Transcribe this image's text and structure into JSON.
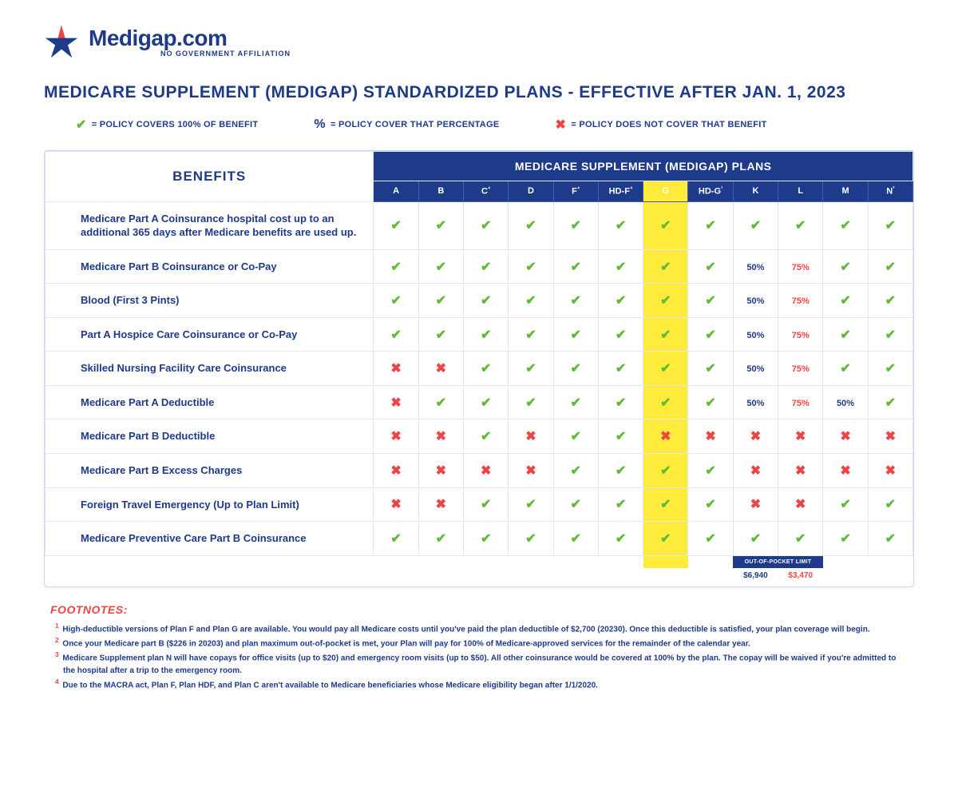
{
  "brand": {
    "name": "Medigap.com",
    "tagline": "NO GOVERNMENT AFFILIATION",
    "star_color": "#1e3a8a",
    "star_accent": "#ef4444"
  },
  "title": "MEDICARE SUPPLEMENT (MEDIGAP) STANDARDIZED PLANS - EFFECTIVE AFTER JAN. 1, 2023",
  "legend": {
    "covers": "= POLICY COVERS 100% OF BENEFIT",
    "percentage": "= POLICY COVER THAT PERCENTAGE",
    "not_cover": "= POLICY DOES NOT COVER THAT BENEFIT"
  },
  "table": {
    "benefits_label": "BENEFITS",
    "plans_label": "MEDICARE SUPPLEMENT (MEDIGAP) PLANS",
    "columns": [
      "A",
      "B",
      "C⁴",
      "D",
      "F⁴",
      "HD-F⁴",
      "G",
      "HD-G¹",
      "K",
      "L",
      "M",
      "N³"
    ],
    "highlight_index": 6,
    "rows": [
      {
        "label": "Medicare Part A Coinsurance hospital cost up to an additional 365 days after Medicare benefits are used up.",
        "vals": [
          "check",
          "check",
          "check",
          "check",
          "check",
          "check",
          "check",
          "check",
          "check",
          "check",
          "check",
          "check"
        ]
      },
      {
        "label": "Medicare Part B Coinsurance or Co-Pay",
        "vals": [
          "check",
          "check",
          "check",
          "check",
          "check",
          "check",
          "check",
          "check",
          "50%",
          "75%",
          "check",
          "check"
        ]
      },
      {
        "label": "Blood (First 3 Pints)",
        "vals": [
          "check",
          "check",
          "check",
          "check",
          "check",
          "check",
          "check",
          "check",
          "50%",
          "75%",
          "check",
          "check"
        ]
      },
      {
        "label": "Part A Hospice Care Coinsurance or Co-Pay",
        "vals": [
          "check",
          "check",
          "check",
          "check",
          "check",
          "check",
          "check",
          "check",
          "50%",
          "75%",
          "check",
          "check"
        ]
      },
      {
        "label": "Skilled Nursing Facility Care Coinsurance",
        "vals": [
          "x",
          "x",
          "check",
          "check",
          "check",
          "check",
          "check",
          "check",
          "50%",
          "75%",
          "check",
          "check"
        ]
      },
      {
        "label": "Medicare Part A Deductible",
        "vals": [
          "x",
          "check",
          "check",
          "check",
          "check",
          "check",
          "check",
          "check",
          "50%",
          "75%",
          "50%",
          "check"
        ]
      },
      {
        "label": "Medicare Part B Deductible",
        "vals": [
          "x",
          "x",
          "check",
          "x",
          "check",
          "check",
          "x",
          "x",
          "x",
          "x",
          "x",
          "x"
        ]
      },
      {
        "label": "Medicare Part B Excess Charges",
        "vals": [
          "x",
          "x",
          "x",
          "x",
          "check",
          "check",
          "check",
          "check",
          "x",
          "x",
          "x",
          "x"
        ]
      },
      {
        "label": "Foreign Travel Emergency (Up to Plan Limit)",
        "vals": [
          "x",
          "x",
          "check",
          "check",
          "check",
          "check",
          "check",
          "check",
          "x",
          "x",
          "check",
          "check"
        ]
      },
      {
        "label": "Medicare Preventive Care Part B Coinsurance",
        "vals": [
          "check",
          "check",
          "check",
          "check",
          "check",
          "check",
          "check",
          "check",
          "check",
          "check",
          "check",
          "check"
        ]
      }
    ],
    "out_of_pocket": {
      "label": "OUT-OF-POCKET LIMIT",
      "k": "$6,940",
      "l": "$3,470"
    }
  },
  "footnotes": {
    "title": "FOOTNOTES:",
    "lines": [
      "High-deductible versions of Plan F and Plan G are available. You would pay all Medicare costs until you've paid the plan deductible of $2,700 (20230). Once this deductible is satisfied, your plan coverage will begin.",
      "Once your Medicare part B ($226 in 20203) and plan maximum out-of-pocket is met, your Plan will pay for 100% of Medicare-approved services for the remainder of the calendar year.",
      "Medicare Supplement plan N will have copays for office visits (up to $20) and emergency room visits (up to $50). All other coinsurance would be covered at 100% by the plan. The copay will be waived if you're admitted to the hospital after a trip to the emergency room.",
      "Due to the MACRA act, Plan F, Plan HDF, and Plan C aren't available to Medicare beneficiaries whose Medicare eligibility began after 1/1/2020."
    ]
  },
  "colors": {
    "primary": "#1e3a8a",
    "highlight": "#ffeb3b",
    "green": "#5fba3a",
    "red": "#ef4444"
  }
}
